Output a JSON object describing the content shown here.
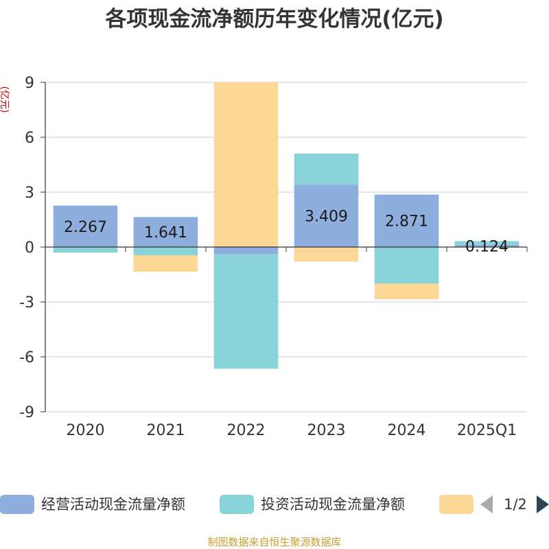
{
  "chart_data": {
    "type": "bar",
    "stacked": true,
    "title": "各项现金流净额历年变化情况(亿元)",
    "ylabel": "(亿元)",
    "categories": [
      "2020",
      "2021",
      "2022",
      "2023",
      "2024",
      "2025Q1"
    ],
    "ylim": [
      -9,
      9
    ],
    "yticks": [
      9,
      6,
      3,
      0,
      -3,
      -6,
      -9
    ],
    "ytick_labels": [
      "9",
      "6",
      "3",
      "0",
      "-3",
      "-6",
      "-9"
    ],
    "grid": true,
    "legend_position": "bottom",
    "series": [
      {
        "name": "经营活动现金流量净额",
        "color": "#8eaede",
        "values": [
          2.267,
          1.641,
          -0.4,
          3.409,
          2.871,
          0.124
        ],
        "labels": [
          "2.267",
          "1.641",
          "",
          "3.409",
          "2.871",
          "0.124"
        ]
      },
      {
        "name": "投资活动现金流量净额",
        "color": "#88d4d8",
        "values": [
          -0.3,
          -0.45,
          -6.25,
          1.7,
          -2.0,
          0.2
        ]
      },
      {
        "name": "",
        "color": "#fdd796",
        "values": [
          0,
          -0.9,
          9.0,
          -0.8,
          -0.85,
          0
        ]
      }
    ]
  },
  "legend": {
    "pager": "1/2"
  },
  "source": "制图数据来自恒生聚源数据库",
  "icons": {
    "prev": "triangle-left-icon",
    "next": "triangle-right-icon"
  }
}
